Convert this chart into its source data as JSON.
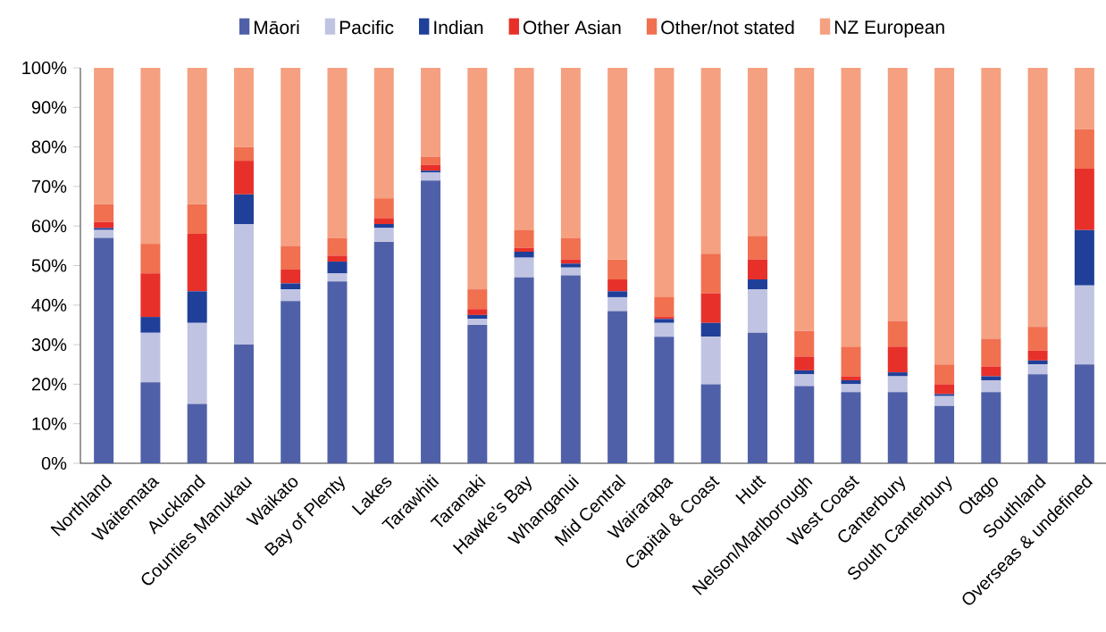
{
  "chart_data": {
    "type": "bar",
    "stacked": true,
    "legend": "top",
    "grid": false,
    "categories": [
      "Northland",
      "Waitemata",
      "Auckland",
      "Counties Manukau",
      "Waikato",
      "Bay of Plenty",
      "Lakes",
      "Tarawhiti",
      "Taranaki",
      "Hawke’s Bay",
      "Whanganui",
      "Mid Central",
      "Wairarapa",
      "Capital & Coast",
      "Hutt",
      "Nelson/Marlborough",
      "West Coast",
      "Canterbury",
      "South Canterbury",
      "Otago",
      "Southland",
      "Overseas & undefined"
    ],
    "ylim": [
      0,
      100
    ],
    "yticks": [
      {
        "value": 0,
        "label": "0%"
      },
      {
        "value": 10,
        "label": "10%"
      },
      {
        "value": 20,
        "label": "20%"
      },
      {
        "value": 30,
        "label": "30%"
      },
      {
        "value": 40,
        "label": "40%"
      },
      {
        "value": 50,
        "label": "50%"
      },
      {
        "value": 60,
        "label": "60%"
      },
      {
        "value": 70,
        "label": "70%"
      },
      {
        "value": 80,
        "label": "80%"
      },
      {
        "value": 90,
        "label": "90%"
      },
      {
        "value": 100,
        "label": "100%"
      }
    ],
    "series": [
      {
        "name": "Māori",
        "color": "#5060a8",
        "values": [
          57,
          20.5,
          15,
          30,
          41,
          46,
          56,
          71.5,
          35,
          47,
          47.5,
          38.5,
          32,
          20,
          33,
          19.5,
          18,
          18,
          14.5,
          18,
          22.5,
          25
        ]
      },
      {
        "name": "Pacific",
        "color": "#c0c4e2",
        "values": [
          2,
          12.5,
          20.5,
          30.5,
          3,
          2,
          3.5,
          2,
          1.5,
          5,
          2,
          3.5,
          3.5,
          12,
          11,
          3,
          2,
          4,
          2.5,
          3,
          2.5,
          20
        ]
      },
      {
        "name": "Indian",
        "color": "#1f3f99",
        "values": [
          0.5,
          4,
          8,
          7.5,
          1.5,
          3,
          1,
          0.5,
          1,
          1.5,
          1,
          1.5,
          1,
          3.5,
          2.5,
          1,
          1,
          1,
          0.5,
          1,
          1,
          14
        ]
      },
      {
        "name": "Other Asian",
        "color": "#e8302a",
        "values": [
          1.5,
          11,
          14.5,
          8.5,
          3.5,
          1.5,
          1.5,
          1.5,
          1.5,
          1,
          1,
          3,
          0.5,
          7.5,
          5,
          3.5,
          1,
          6.5,
          2.5,
          2.5,
          2.5,
          15.5
        ]
      },
      {
        "name": "Other/not stated",
        "color": "#f07050",
        "values": [
          4.5,
          7.5,
          7.5,
          3.5,
          6,
          4.5,
          5,
          2,
          5,
          4.5,
          5.5,
          5,
          5,
          10,
          6,
          6.5,
          7.5,
          6.5,
          5,
          7,
          6,
          10
        ]
      },
      {
        "name": "NZ European",
        "color": "#f5a080",
        "values": [
          34.5,
          44.5,
          34.5,
          20,
          45,
          43,
          33,
          22.5,
          56,
          41,
          43,
          48.5,
          58,
          47,
          42.5,
          66.5,
          70.5,
          64,
          75,
          68.5,
          65.5,
          15.5
        ]
      }
    ]
  }
}
